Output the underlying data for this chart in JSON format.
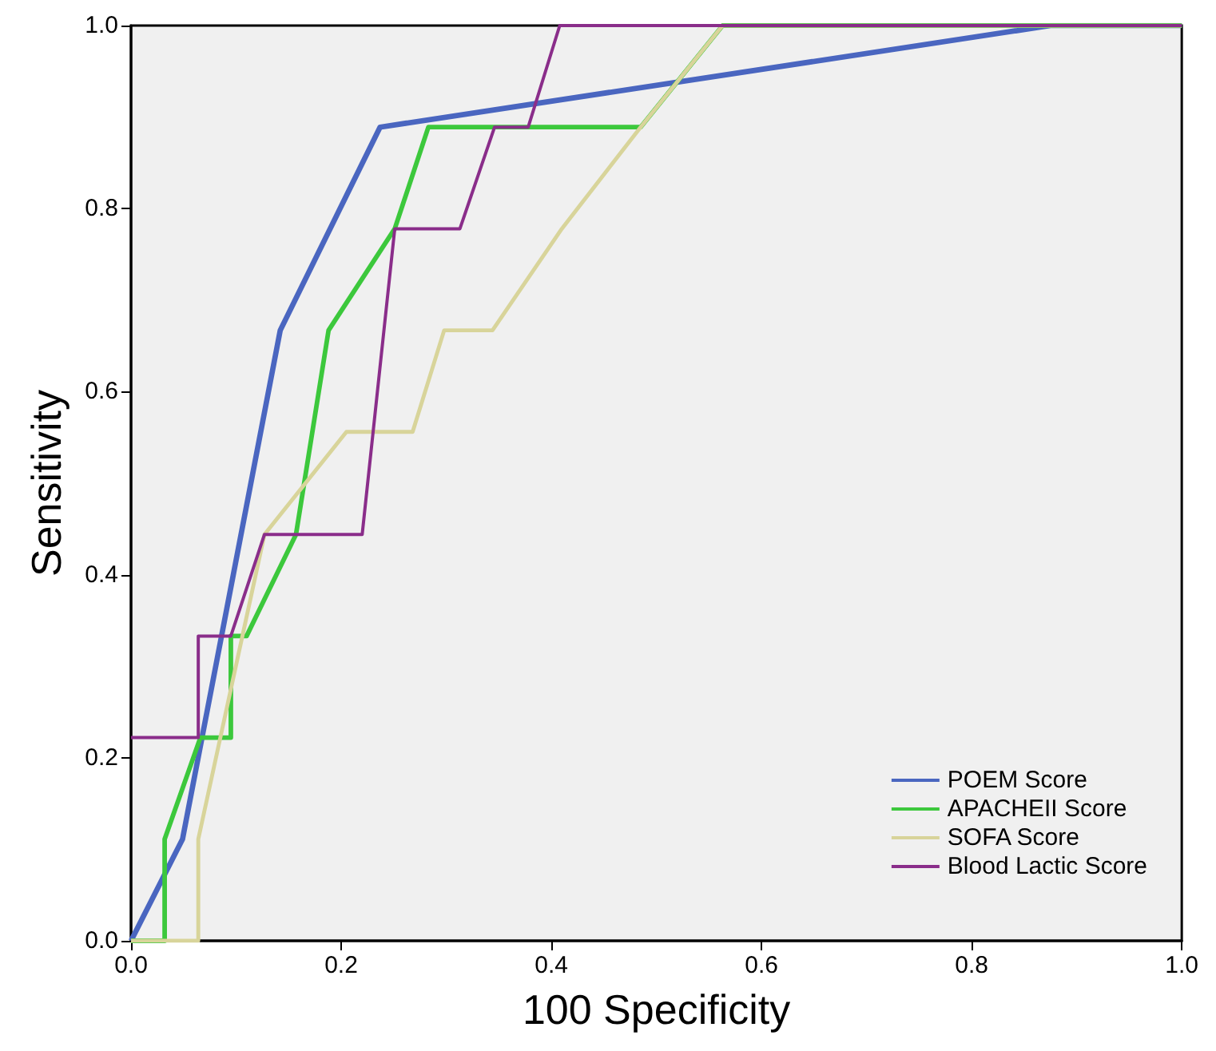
{
  "chart_data": {
    "type": "line",
    "xlabel": "100 Specificity",
    "ylabel": "Sensitivity",
    "xlim": [
      0,
      1
    ],
    "ylim": [
      0,
      1
    ],
    "xticks": [
      {
        "value": 0,
        "label": "0.0"
      },
      {
        "value": 0.2,
        "label": "0.2"
      },
      {
        "value": 0.4,
        "label": "0.4"
      },
      {
        "value": 0.6,
        "label": "0.6"
      },
      {
        "value": 0.8,
        "label": "0.8"
      },
      {
        "value": 1,
        "label": "1.0"
      }
    ],
    "yticks": [
      {
        "value": 0,
        "label": "0.0"
      },
      {
        "value": 0.2,
        "label": "0.2"
      },
      {
        "value": 0.4,
        "label": "0.4"
      },
      {
        "value": 0.6,
        "label": "0.6"
      },
      {
        "value": 0.8,
        "label": "0.8"
      },
      {
        "value": 1,
        "label": "1.0"
      }
    ],
    "grid": false,
    "legend": "bottom right",
    "marker": "none",
    "line_style": "solid",
    "series": [
      {
        "name": "POEM Score",
        "color": "#4a66c0",
        "x": [
          0,
          0.049,
          0.142,
          0.237,
          0.875,
          1
        ],
        "values": [
          0,
          0.111,
          0.667,
          0.889,
          1,
          1
        ]
      },
      {
        "name": "APACHEII Score",
        "color": "#3cc83c",
        "x": [
          0,
          0.032,
          0.032,
          0.066,
          0.095,
          0.095,
          0.11,
          0.157,
          0.188,
          0.251,
          0.283,
          0.485,
          0.563,
          1
        ],
        "values": [
          0,
          0,
          0.111,
          0.222,
          0.222,
          0.333,
          0.333,
          0.444,
          0.667,
          0.778,
          0.889,
          0.889,
          1,
          1
        ]
      },
      {
        "name": "SOFA Score",
        "color": "#d8d49a",
        "x": [
          0,
          0.064,
          0.064,
          0.127,
          0.205,
          0.268,
          0.298,
          0.344,
          0.41,
          0.485,
          0.563,
          1
        ],
        "values": [
          0,
          0,
          0.111,
          0.444,
          0.556,
          0.556,
          0.667,
          0.667,
          0.778,
          0.889,
          1,
          1
        ]
      },
      {
        "name": "Blood Lactic Score",
        "color": "#8a2d8a",
        "x": [
          0,
          0.064,
          0.064,
          0.095,
          0.127,
          0.22,
          0.251,
          0.313,
          0.346,
          0.378,
          0.408,
          1
        ],
        "values": [
          0.222,
          0.222,
          0.333,
          0.333,
          0.444,
          0.444,
          0.778,
          0.778,
          0.889,
          0.889,
          1,
          1
        ]
      }
    ]
  }
}
